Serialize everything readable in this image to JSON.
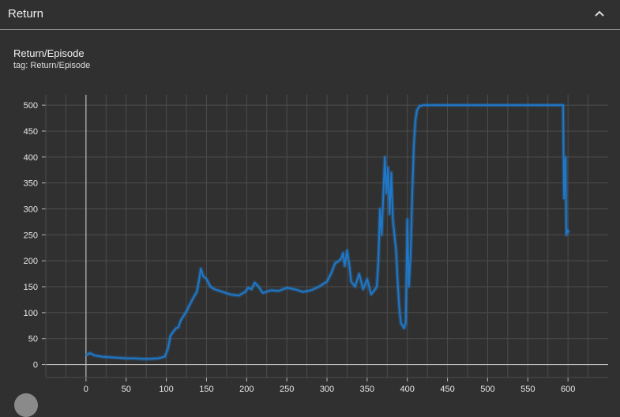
{
  "header": {
    "title": "Return"
  },
  "card": {
    "title": "Return/Episode",
    "tag_label": "tag: ",
    "tag_value": "Return/Episode"
  },
  "icons": {
    "collapse": "chevron-up-icon",
    "corner": "circle-button-icon"
  },
  "colors": {
    "background": "#303030",
    "line": "#1f78c8",
    "grid": "#4d4d4d",
    "axis": "#bdbdbd",
    "text": "#e8e8e8"
  },
  "chart_data": {
    "type": "line",
    "title": "Return/Episode",
    "xlabel": "",
    "ylabel": "",
    "xlim": [
      -50,
      650
    ],
    "ylim": [
      -25,
      520
    ],
    "xticks": [
      0,
      50,
      100,
      150,
      200,
      250,
      300,
      350,
      400,
      450,
      500,
      550,
      600
    ],
    "yticks": [
      0,
      50,
      100,
      150,
      200,
      250,
      300,
      350,
      400,
      450,
      500
    ],
    "grid": true,
    "series": [
      {
        "x": [
          0,
          5,
          10,
          20,
          30,
          40,
          50,
          60,
          70,
          80,
          90,
          98,
          102,
          105,
          108,
          112,
          115,
          118,
          122,
          126,
          130,
          134,
          138,
          141,
          143,
          146,
          150,
          155,
          160,
          170,
          180,
          190,
          198,
          202,
          206,
          210,
          215,
          220,
          230,
          240,
          250,
          260,
          270,
          280,
          290,
          300,
          305,
          310,
          315,
          318,
          320,
          322,
          325,
          328,
          330,
          335,
          340,
          345,
          350,
          355,
          360,
          362,
          364,
          366,
          368,
          370,
          372,
          374,
          376,
          378,
          380,
          382,
          384,
          386,
          388,
          390,
          392,
          394,
          396,
          398,
          400,
          402,
          404,
          406,
          408,
          410,
          412,
          415,
          420,
          430,
          450,
          500,
          550,
          594,
          595,
          596,
          597,
          598,
          599,
          600,
          601
        ],
        "values": [
          18,
          22,
          18,
          15,
          14,
          13,
          12,
          12,
          11,
          11,
          12,
          15,
          30,
          55,
          62,
          70,
          72,
          85,
          95,
          105,
          118,
          130,
          140,
          165,
          185,
          170,
          165,
          150,
          145,
          140,
          135,
          133,
          140,
          148,
          145,
          158,
          150,
          138,
          143,
          142,
          148,
          145,
          140,
          143,
          150,
          160,
          175,
          195,
          200,
          205,
          215,
          190,
          220,
          190,
          160,
          150,
          175,
          145,
          165,
          135,
          145,
          150,
          200,
          300,
          250,
          320,
          400,
          330,
          380,
          290,
          370,
          280,
          250,
          220,
          160,
          110,
          80,
          75,
          70,
          80,
          280,
          150,
          210,
          320,
          420,
          470,
          490,
          498,
          500,
          500,
          500,
          500,
          500,
          500,
          320,
          380,
          400,
          250,
          260,
          255,
          258
        ]
      }
    ]
  }
}
